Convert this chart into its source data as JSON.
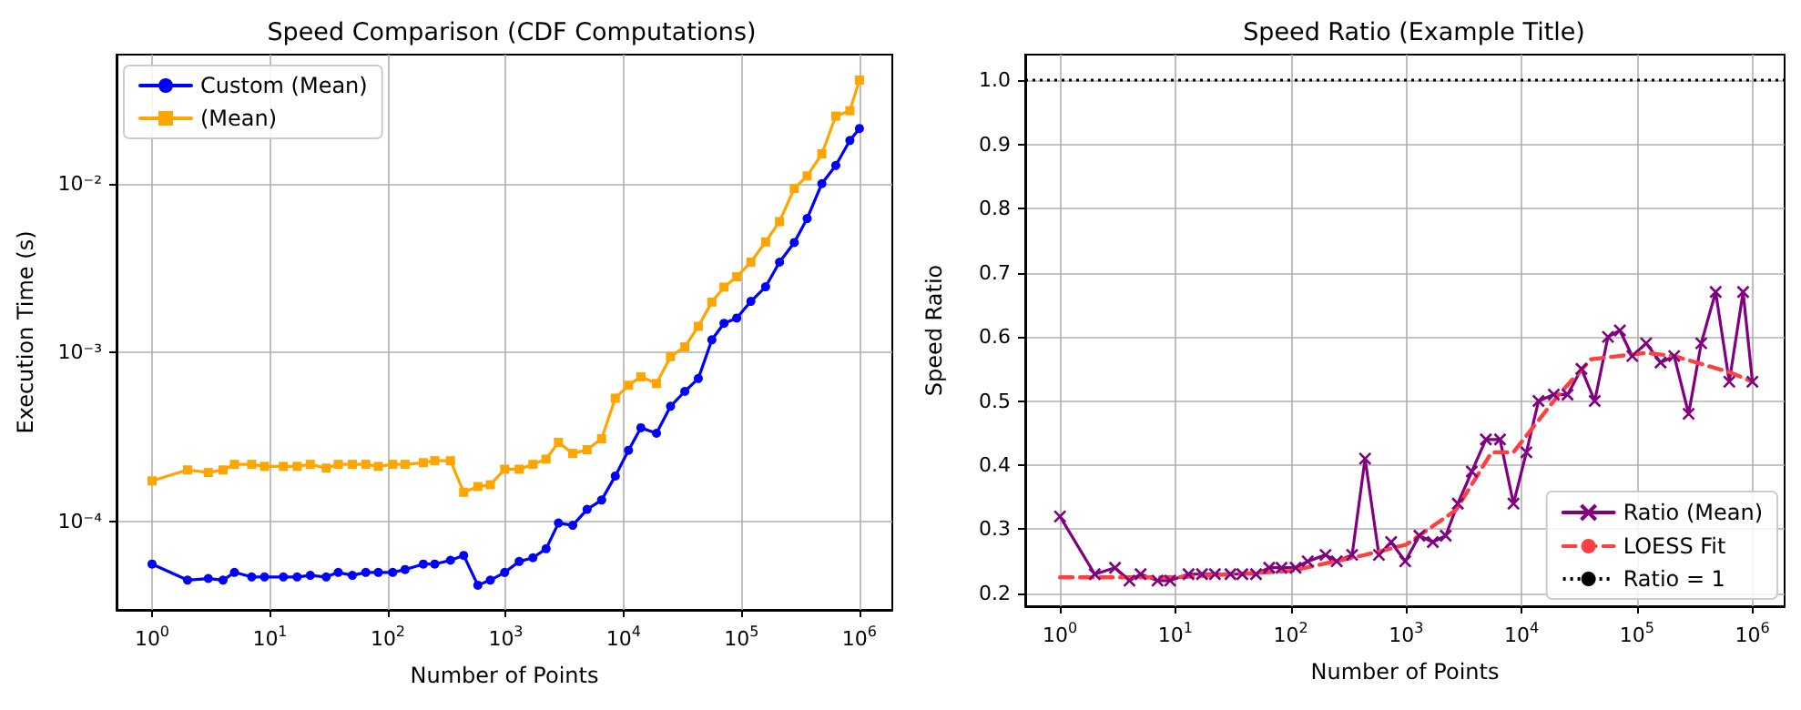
{
  "chart_data": [
    {
      "type": "line",
      "title": "Speed Comparison (CDF Computations)",
      "xlabel": "Number of Points",
      "ylabel": "Execution Time (s)",
      "log": "xy",
      "grid": true,
      "legend": "top left",
      "x": [
        1,
        2,
        3,
        4,
        5,
        7,
        9,
        13,
        17,
        22,
        30,
        38,
        50,
        65,
        83,
        110,
        140,
        200,
        250,
        340,
        440,
        580,
        740,
        980,
        1300,
        1700,
        2200,
        2800,
        3700,
        4900,
        6500,
        8500,
        11000,
        14000,
        19000,
        25000,
        33000,
        43000,
        56000,
        71000,
        91000,
        120000,
        160000,
        210000,
        280000,
        360000,
        480000,
        630000,
        830000,
        1000000
      ],
      "xlim": [
        0.5,
        1900000
      ],
      "xticks": [
        {
          "value": 1,
          "label": "10$^{0}$"
        },
        {
          "value": 10,
          "label": "10$^{1}$"
        },
        {
          "value": 100,
          "label": "10$^{2}$"
        },
        {
          "value": 1000,
          "label": "10$^{3}$"
        },
        {
          "value": 10000,
          "label": "10$^{4}$"
        },
        {
          "value": 100000,
          "label": "10$^{5}$"
        },
        {
          "value": 1000000,
          "label": "10$^{6}$"
        }
      ],
      "ylim": [
        3e-05,
        0.058
      ],
      "yticks": [
        {
          "value": 0.0001,
          "label": "10⁻⁴"
        },
        {
          "value": 0.001,
          "label": "10⁻³"
        },
        {
          "value": 0.01,
          "label": "10⁻²"
        }
      ],
      "series": [
        {
          "name": "Custom (Mean)",
          "color": "#0000ff",
          "marker": "circle",
          "values": [
            5.6e-05,
            4.5e-05,
            4.6e-05,
            4.5e-05,
            5e-05,
            4.7e-05,
            4.7e-05,
            4.7e-05,
            4.7e-05,
            4.8e-05,
            4.7e-05,
            5e-05,
            4.8e-05,
            5e-05,
            5e-05,
            5e-05,
            5.2e-05,
            5.6e-05,
            5.6e-05,
            5.9e-05,
            6.3e-05,
            4.2e-05,
            4.5e-05,
            5e-05,
            5.8e-05,
            6.1e-05,
            6.9e-05,
            9.8e-05,
            9.5e-05,
            0.000118,
            0.000134,
            0.000186,
            0.000264,
            0.000359,
            0.000333,
            0.000481,
            0.000589,
            0.000702,
            0.00119,
            0.00149,
            0.0016,
            0.00201,
            0.00245,
            0.00343,
            0.00448,
            0.00621,
            0.01,
            0.0128,
            0.018,
            0.0212
          ]
        },
        {
          "name": "(Mean)",
          "color": "#ffa500",
          "marker": "square",
          "values": [
            0.000174,
            0.000202,
            0.000195,
            0.000202,
            0.000218,
            0.000218,
            0.000212,
            0.000212,
            0.000212,
            0.000218,
            0.000207,
            0.000218,
            0.000218,
            0.000218,
            0.000212,
            0.000218,
            0.000218,
            0.000223,
            0.000229,
            0.000229,
            0.000149,
            0.000161,
            0.000165,
            0.000204,
            0.000204,
            0.000218,
            0.000234,
            0.000294,
            0.000253,
            0.000266,
            0.000309,
            0.000537,
            0.00064,
            0.000719,
            0.000656,
            0.000947,
            0.00108,
            0.00143,
            0.00199,
            0.00244,
            0.00281,
            0.00343,
            0.00452,
            0.00596,
            0.00935,
            0.0111,
            0.015,
            0.0251,
            0.027,
            0.041
          ]
        }
      ]
    },
    {
      "type": "line",
      "title": "Speed Ratio (Example Title)",
      "xlabel": "Number of Points",
      "ylabel": "Speed Ratio",
      "log": "x",
      "grid": true,
      "legend": "bottom right",
      "x": [
        1,
        2,
        3,
        4,
        5,
        7,
        9,
        13,
        17,
        22,
        30,
        38,
        50,
        65,
        83,
        110,
        140,
        200,
        250,
        340,
        440,
        580,
        740,
        980,
        1300,
        1700,
        2200,
        2800,
        3700,
        4900,
        6500,
        8500,
        11000,
        14000,
        19000,
        25000,
        33000,
        43000,
        56000,
        71000,
        91000,
        120000,
        160000,
        210000,
        280000,
        360000,
        480000,
        630000,
        830000,
        1000000
      ],
      "xlim": [
        0.5,
        1900000
      ],
      "xticks": [
        {
          "value": 1,
          "label": "10$^{0}$"
        },
        {
          "value": 10,
          "label": "10$^{1}$"
        },
        {
          "value": 100,
          "label": "10$^{2}$"
        },
        {
          "value": 1000,
          "label": "10$^{3}$"
        },
        {
          "value": 10000,
          "label": "10$^{4}$"
        },
        {
          "value": 100000,
          "label": "10$^{5}$"
        },
        {
          "value": 1000000,
          "label": "10$^{6}$"
        }
      ],
      "ylim": [
        0.18,
        1.04
      ],
      "yticks": [
        0.2,
        0.3,
        0.4,
        0.5,
        0.6,
        0.7,
        0.8,
        0.9,
        {
          "value": 1,
          "label": "1.0"
        }
      ],
      "ref_lines": [
        {
          "axis": "y",
          "value": 1,
          "label": "Ratio = 1",
          "color": "#000000",
          "line_style": "dotted"
        }
      ],
      "series": [
        {
          "name": "Ratio (Mean)",
          "color": "#800080",
          "marker": "cross",
          "values": [
            0.32,
            0.23,
            0.24,
            0.22,
            0.23,
            0.22,
            0.22,
            0.23,
            0.23,
            0.23,
            0.23,
            0.23,
            0.23,
            0.24,
            0.24,
            0.24,
            0.25,
            0.26,
            0.25,
            0.26,
            0.41,
            0.26,
            0.28,
            0.25,
            0.29,
            0.28,
            0.29,
            0.34,
            0.39,
            0.44,
            0.44,
            0.34,
            0.42,
            0.5,
            0.51,
            0.51,
            0.55,
            0.5,
            0.6,
            0.61,
            0.57,
            0.59,
            0.56,
            0.57,
            0.48,
            0.59,
            0.67,
            0.53,
            0.67,
            0.53
          ]
        },
        {
          "name": "LOESS Fit",
          "color": "#ff4040",
          "marker": "none",
          "line_style": "dashed",
          "x": [
            1,
            10,
            100,
            440,
            1000,
            2700,
            5500,
            8500,
            21000,
            40000,
            120000,
            210000,
            630000,
            1000000
          ],
          "values": [
            0.225,
            0.225,
            0.235,
            0.26,
            0.276,
            0.33,
            0.42,
            0.42,
            0.51,
            0.565,
            0.575,
            0.57,
            0.545,
            0.53
          ]
        }
      ]
    }
  ]
}
